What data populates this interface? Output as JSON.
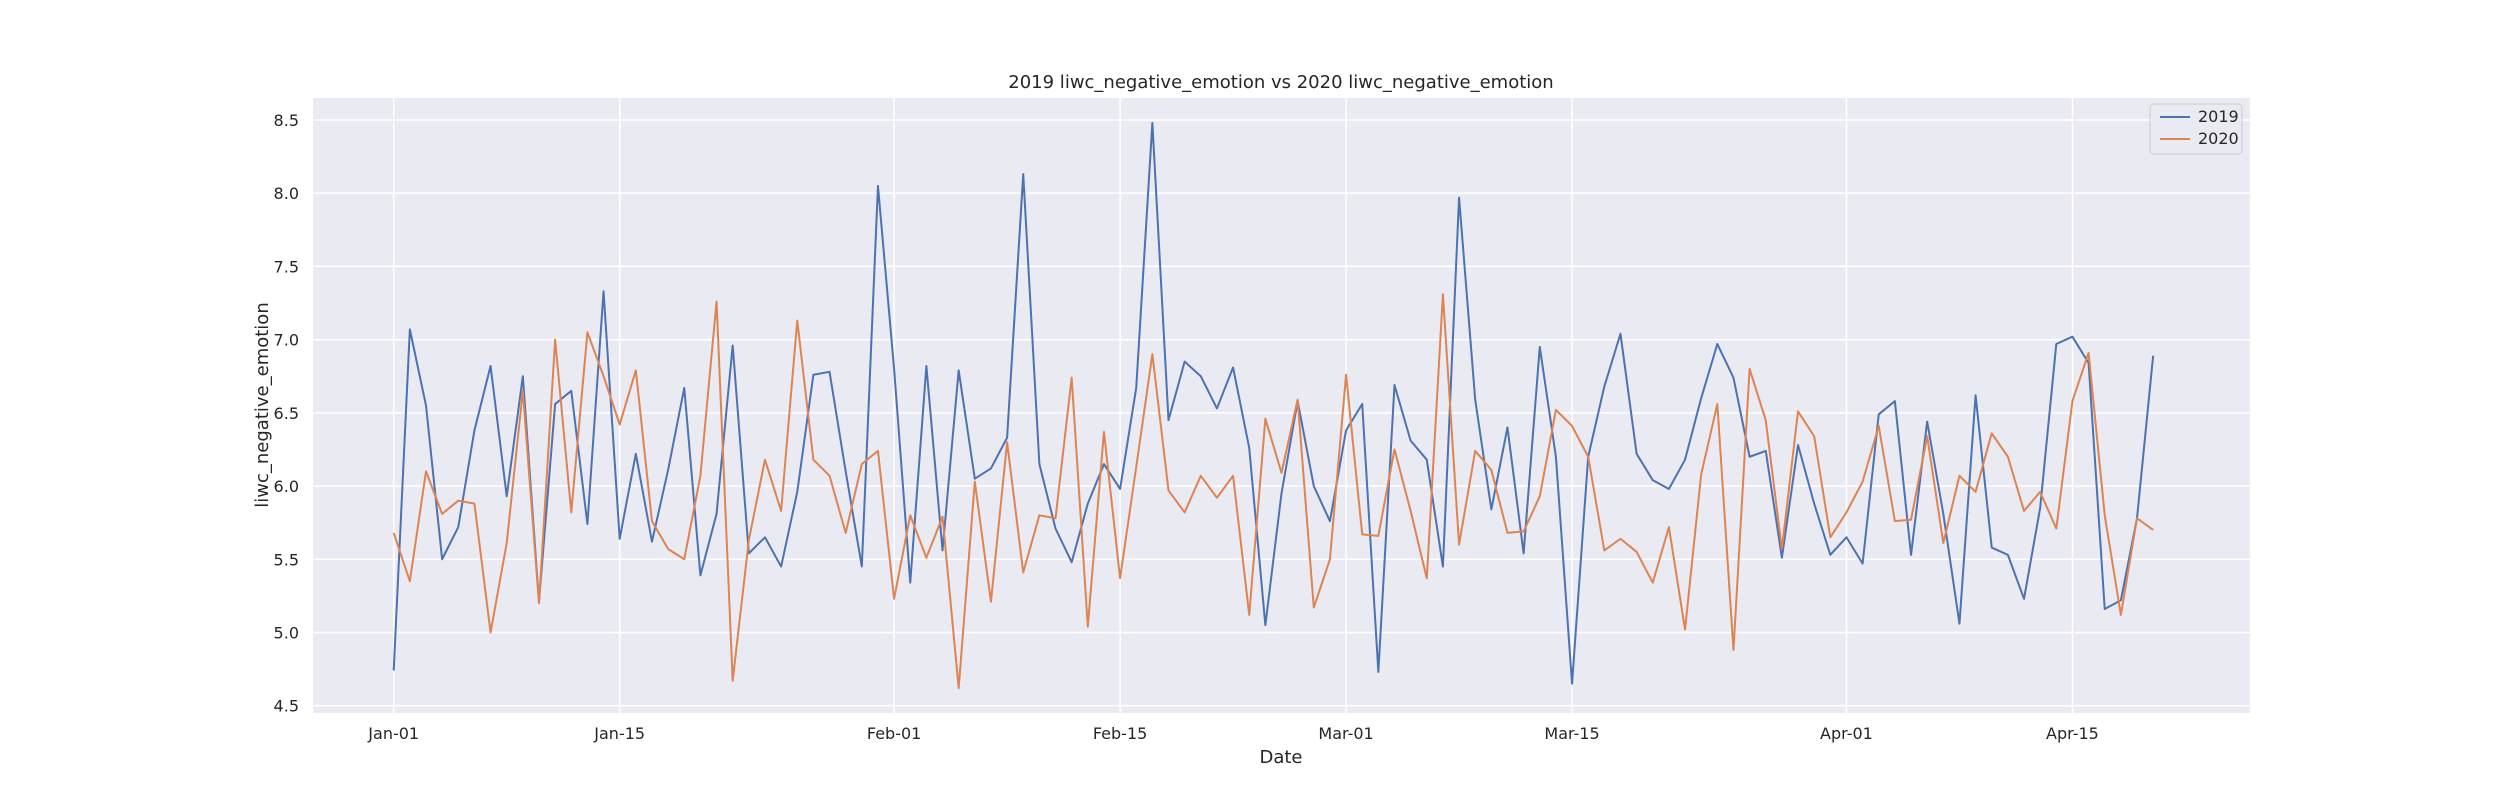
{
  "chart_data": {
    "type": "line",
    "title": "2019 liwc_negative_emotion vs 2020 liwc_negative_emotion",
    "xlabel": "Date",
    "ylabel": "liwc_negative_emotion",
    "x_tick_labels": [
      "Jan-01",
      "Jan-15",
      "Feb-01",
      "Feb-15",
      "Mar-01",
      "Mar-15",
      "Apr-01",
      "Apr-15"
    ],
    "x_tick_days": [
      0,
      14,
      31,
      45,
      59,
      73,
      90,
      104
    ],
    "x_domain_days": [
      -5,
      115
    ],
    "ylim": [
      4.45,
      8.65
    ],
    "y_ticks": [
      4.5,
      5.0,
      5.5,
      6.0,
      6.5,
      7.0,
      7.5,
      8.0,
      8.5
    ],
    "grid": true,
    "legend_position": "top-right",
    "colors": {
      "2019": "#4c72b0",
      "2020": "#dd8452",
      "background": "#eaeaf2",
      "grid": "#ffffff"
    },
    "series": [
      {
        "name": "2019",
        "color": "#4c72b0",
        "values": [
          4.74,
          7.07,
          6.55,
          5.5,
          5.72,
          6.38,
          6.82,
          5.93,
          6.75,
          5.21,
          6.56,
          6.65,
          5.74,
          7.33,
          5.64,
          6.22,
          5.62,
          6.11,
          6.67,
          5.39,
          5.81,
          6.96,
          5.54,
          5.65,
          5.45,
          5.96,
          6.76,
          6.78,
          6.1,
          5.45,
          8.05,
          6.8,
          5.34,
          6.82,
          5.56,
          6.79,
          6.05,
          6.12,
          6.33,
          8.13,
          6.15,
          5.71,
          5.48,
          5.88,
          6.15,
          5.98,
          6.67,
          8.48,
          6.45,
          6.85,
          6.75,
          6.53,
          6.81,
          6.26,
          5.05,
          5.95,
          6.58,
          6.0,
          5.76,
          6.38,
          6.56,
          4.73,
          6.69,
          6.31,
          6.18,
          5.45,
          7.97,
          6.59,
          5.84,
          6.4,
          5.54,
          6.95,
          6.2,
          4.65,
          6.2,
          6.68,
          7.04,
          6.22,
          6.04,
          5.98,
          6.18,
          6.6,
          6.97,
          6.74,
          6.2,
          6.24,
          5.51,
          6.28,
          5.88,
          5.53,
          5.65,
          5.47,
          6.49,
          6.58,
          5.53,
          6.44,
          5.81,
          5.06,
          6.62,
          5.58,
          5.53,
          5.23,
          5.85,
          6.97,
          7.02,
          6.84,
          5.16,
          5.22,
          5.78,
          6.89
        ]
      },
      {
        "name": "2020",
        "color": "#dd8452",
        "values": [
          5.68,
          5.35,
          6.1,
          5.81,
          5.9,
          5.88,
          5.0,
          5.61,
          6.65,
          5.2,
          7.0,
          5.82,
          7.05,
          6.75,
          6.42,
          6.79,
          5.76,
          5.57,
          5.5,
          6.07,
          7.26,
          4.67,
          5.63,
          6.18,
          5.83,
          7.13,
          6.18,
          6.07,
          5.68,
          6.15,
          6.24,
          5.23,
          5.8,
          5.51,
          5.79,
          4.62,
          6.03,
          5.21,
          6.3,
          5.41,
          5.8,
          5.78,
          6.74,
          5.04,
          6.37,
          5.37,
          6.13,
          6.9,
          5.97,
          5.82,
          6.07,
          5.92,
          6.07,
          5.12,
          6.46,
          6.09,
          6.59,
          5.17,
          5.5,
          6.76,
          5.67,
          5.66,
          6.25,
          5.83,
          5.37,
          7.31,
          5.6,
          6.24,
          6.11,
          5.68,
          5.69,
          5.93,
          6.52,
          6.41,
          6.2,
          5.56,
          5.64,
          5.55,
          5.34,
          5.72,
          5.02,
          6.08,
          6.56,
          4.88,
          6.8,
          6.45,
          5.57,
          6.51,
          6.34,
          5.65,
          5.82,
          6.03,
          6.41,
          5.76,
          5.77,
          6.34,
          5.61,
          6.07,
          5.96,
          6.36,
          6.2,
          5.83,
          5.96,
          5.71,
          6.58,
          6.91,
          5.8,
          5.12,
          5.78,
          5.7
        ]
      }
    ]
  }
}
